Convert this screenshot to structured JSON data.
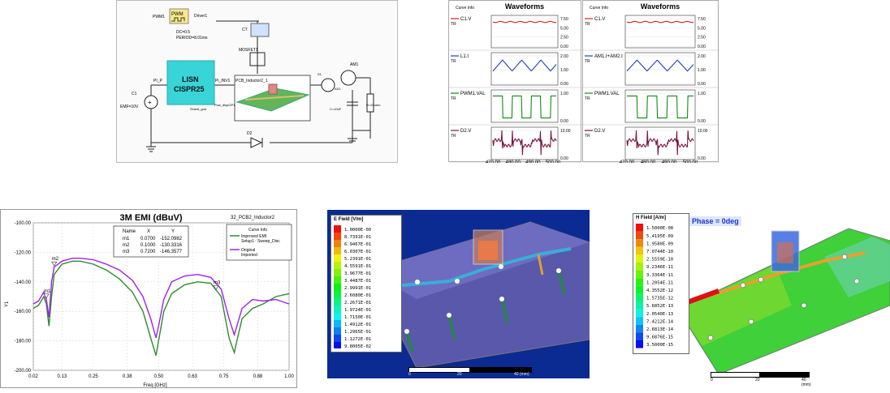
{
  "schematic": {
    "pwm_source": "PWM1",
    "pwm_label": "PWM",
    "pwm_driver": "Driver1",
    "pwm_params": [
      "DC=0.5",
      "PERIOD=8.01ms"
    ],
    "mosfet": "MOSFET1",
    "lisn_title": [
      "LISN",
      "CISPR25"
    ],
    "lisn_left": "PI_P",
    "lisn_right": "Pi_INV1",
    "lisn_gnd": "Shield_gnd",
    "source": "C1",
    "source_value": "EMF=10V",
    "board": "PCB_Inductor2_1",
    "board_port": "Pow_dispOP1",
    "ammeter": "AM1",
    "cap": "C=10uF",
    "res": "R=20ohm",
    "diode": "D2",
    "ammeter_ports": [
      "S1",
      "AS1"
    ]
  },
  "waveforms_left": {
    "title": "Waveforms",
    "curve_info": "Curve Info",
    "x_label": "Time [us]",
    "x_ticks": [
      "470.00",
      "480.00",
      "490.00",
      "500.00"
    ],
    "panels": [
      {
        "name": "C1.V",
        "tag": "TR",
        "color": "#d21e1e",
        "ticks": [
          "7.50",
          "5.00",
          "2.50",
          "0.00"
        ]
      },
      {
        "name": "L1.I",
        "tag": "TR",
        "color": "#1f3fb4",
        "ticks": [
          "2.00",
          "1.00",
          "0.00"
        ]
      },
      {
        "name": "PWM1.VAL",
        "tag": "TR",
        "color": "#138a13",
        "ticks": [
          "1.00",
          "0.00"
        ]
      },
      {
        "name": "D2.V",
        "tag": "TR",
        "color": "#7a1740",
        "ticks": [
          "10.00",
          "0.00"
        ]
      }
    ]
  },
  "waveforms_right": {
    "title": "Waveforms",
    "curve_info": "Curve Info",
    "x_label": "Time [us]",
    "x_ticks": [
      "470.00",
      "480.00",
      "490.00",
      "500.00"
    ],
    "panels": [
      {
        "name": "C1.V",
        "tag": "TR",
        "color": "#d21e1e",
        "ticks": [
          "7.50",
          "5.00",
          "2.50",
          "0.00"
        ]
      },
      {
        "name": "AM1.I+AM2.I",
        "tag": "TR",
        "color": "#1f3fb4",
        "ticks": [
          "2.00",
          "1.00",
          "0.00"
        ]
      },
      {
        "name": "PWM1.VAL",
        "tag": "TR",
        "color": "#138a13",
        "ticks": [
          "1.00",
          "0.00"
        ]
      },
      {
        "name": "D2.V",
        "tag": "TR",
        "color": "#7a1740",
        "ticks": [
          "10.00",
          "0.00"
        ]
      }
    ]
  },
  "emi_chart": {
    "title": "3M EMI (dBuV)",
    "project": "32_PCB2_Inductor2",
    "ylabel": "Y1",
    "xlabel": "Freq [GHz]",
    "y_ticks": [
      "-100.00",
      "-120.00",
      "-140.00",
      "-160.00",
      "-180.00",
      "-200.00"
    ],
    "x_ticks": [
      "0.02",
      "0.13",
      "0.25",
      "0.38",
      "0.50",
      "0.63",
      "0.75",
      "0.88",
      "1.00"
    ],
    "marker_table": {
      "headers": [
        "Name",
        "X",
        "Y"
      ],
      "rows": [
        [
          "m1",
          "0.0700",
          "-152.0982"
        ],
        [
          "m2",
          "0.1000",
          "-130.3316"
        ],
        [
          "m3",
          "0.7200",
          "-146.3577"
        ]
      ]
    },
    "legend_title": "Curve Info",
    "legend": [
      {
        "label": "Improved EMI",
        "sub": "Setup1 : Sweep_Disc",
        "color": "#2e8b2e"
      },
      {
        "label": "Original",
        "sub": "Imported",
        "color": "#a020f0"
      }
    ],
    "markers": [
      "m1",
      "m2",
      "m3"
    ]
  },
  "chart_data": {
    "type": "line",
    "title": "3M EMI (dBuV)",
    "xlabel": "Freq [GHz]",
    "ylabel": "Y1",
    "xlim": [
      0.02,
      1.0
    ],
    "ylim": [
      -200,
      -100
    ],
    "x": [
      0.02,
      0.04,
      0.06,
      0.07,
      0.08,
      0.09,
      0.1,
      0.13,
      0.17,
      0.2,
      0.25,
      0.3,
      0.35,
      0.4,
      0.44,
      0.47,
      0.49,
      0.5,
      0.52,
      0.55,
      0.6,
      0.65,
      0.7,
      0.74,
      0.77,
      0.79,
      0.8,
      0.82,
      0.86,
      0.9,
      0.95,
      1.0
    ],
    "series": [
      {
        "name": "Improved EMI",
        "values": [
          -158,
          -156,
          -150,
          -155,
          -170,
          -150,
          -135,
          -128,
          -126,
          -126,
          -128,
          -132,
          -138,
          -147,
          -160,
          -178,
          -190,
          -180,
          -160,
          -148,
          -142,
          -140,
          -141,
          -150,
          -178,
          -188,
          -180,
          -165,
          -158,
          -155,
          -150,
          -148
        ]
      },
      {
        "name": "Original",
        "values": [
          -155,
          -153,
          -147,
          -152,
          -164,
          -140,
          -130,
          -126,
          -124,
          -124,
          -125,
          -128,
          -132,
          -139,
          -150,
          -165,
          -178,
          -170,
          -152,
          -140,
          -136,
          -135,
          -137,
          -145,
          -165,
          -176,
          -170,
          -158,
          -152,
          -153,
          -152,
          -155
        ]
      }
    ]
  },
  "efield": {
    "title": "E Field [V/m]",
    "values": [
      "1.0000E-00",
      "8.7391E-01",
      "6.9467E-01",
      "6.0307E-01",
      "5.2391E-01",
      "4.5591E-01",
      "3.9677E-01",
      "3.4487E-01",
      "2.9991E-01",
      "2.6080E-01",
      "2.2671E-01",
      "1.9724E-01",
      "1.7150E-01",
      "1.4912E-01",
      "1.2965E-01",
      "1.1272E-01",
      "9.8005E-02"
    ],
    "scale": [
      "0",
      "20",
      "40 (mm)"
    ]
  },
  "hfield": {
    "title": "H Field [A/m]",
    "phase": "Phase = 0deg",
    "values": [
      "1.5000E-08",
      "5.4195E-09",
      "1.9580E-09",
      "7.0744E-10",
      "2.5559E-10",
      "9.2346E-11",
      "3.3364E-11",
      "1.2054E-11",
      "4.3552E-12",
      "1.5735E-12",
      "5.6852E-13",
      "2.0540E-13",
      "7.4212E-14",
      "2.6813E-14",
      "9.6876E-15",
      "3.5000E-15"
    ],
    "scale": [
      "0",
      "20",
      "40 (mm)"
    ]
  }
}
